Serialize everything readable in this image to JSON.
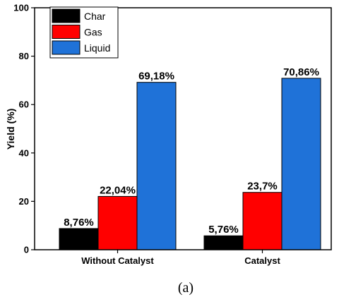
{
  "chart_data": {
    "type": "bar",
    "categories": [
      "Without Catalyst",
      "Catalyst"
    ],
    "series": [
      {
        "name": "Char",
        "values": [
          8.76,
          5.76
        ],
        "labels": [
          "8,76%",
          "5,76%"
        ],
        "color": "#000000"
      },
      {
        "name": "Gas",
        "values": [
          22.04,
          23.7
        ],
        "labels": [
          "22,04%",
          "23,7%"
        ],
        "color": "#ff0000"
      },
      {
        "name": "Liquid",
        "values": [
          69.18,
          70.86
        ],
        "labels": [
          "69,18%",
          "70,86%"
        ],
        "color": "#1f72d8"
      }
    ],
    "ylabel": "Yield (%)",
    "xlabel": "",
    "ylim": [
      0,
      100
    ],
    "yticks": [
      0,
      20,
      40,
      60,
      80,
      100
    ],
    "legend_position": "top-left",
    "grid": false
  },
  "caption": "(a)"
}
